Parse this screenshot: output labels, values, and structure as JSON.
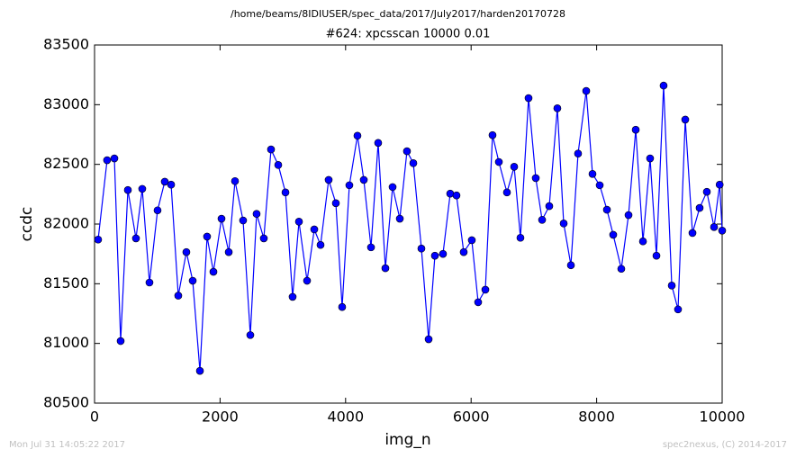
{
  "chart_data": {
    "type": "line",
    "title": "/home/beams/8IDIUSER/spec_data/2017/July2017/harden20170728",
    "subtitle": "#624: xpcsscan 10000 0.01",
    "xlabel": "img_n",
    "ylabel": "ccdc",
    "annotations": [
      "Mon Jul 31 14:05:22 2017",
      "spec2nexus, (C) 2014-2017"
    ],
    "color": "#0000ff",
    "marker": "circle",
    "grid": false,
    "xlim": [
      0,
      10000
    ],
    "xticks": [
      0,
      2000,
      4000,
      6000,
      8000,
      10000
    ],
    "ylim": [
      80500,
      83500
    ],
    "yticks": [
      80500,
      81000,
      81500,
      82000,
      82500,
      83000,
      83500
    ],
    "x": [
      57,
      200,
      316,
      416,
      531,
      660,
      760,
      875,
      1004,
      1119,
      1220,
      1334,
      1463,
      1564,
      1679,
      1793,
      1894,
      2023,
      2138,
      2238,
      2367,
      2482,
      2582,
      2697,
      2812,
      2927,
      3042,
      3156,
      3257,
      3386,
      3501,
      3601,
      3730,
      3845,
      3945,
      4060,
      4189,
      4290,
      4405,
      4519,
      4634,
      4749,
      4864,
      4978,
      5079,
      5208,
      5323,
      5423,
      5552,
      5667,
      5767,
      5882,
      6011,
      6112,
      6227,
      6341,
      6442,
      6571,
      6686,
      6786,
      6915,
      7030,
      7131,
      7245,
      7374,
      7475,
      7590,
      7704,
      7834,
      7934,
      8049,
      8164,
      8264,
      8393,
      8508,
      8623,
      8738,
      8852,
      8953,
      9067,
      9197,
      9297,
      9412,
      9527,
      9641,
      9756,
      9871,
      9960,
      10000
    ],
    "values": [
      81870,
      82535,
      82550,
      81020,
      82285,
      81880,
      82295,
      81510,
      82115,
      82355,
      82330,
      81400,
      81765,
      81525,
      80770,
      81895,
      81600,
      82045,
      81765,
      82360,
      82030,
      81070,
      82085,
      81880,
      82625,
      82495,
      82265,
      81390,
      82020,
      81525,
      81955,
      81825,
      82370,
      82175,
      81305,
      82325,
      82740,
      82370,
      81805,
      82680,
      81630,
      82310,
      82045,
      82610,
      82510,
      81795,
      81035,
      81735,
      81750,
      82255,
      82240,
      81765,
      81865,
      81345,
      81450,
      82745,
      82520,
      82265,
      82480,
      81885,
      83055,
      82385,
      82035,
      82150,
      82970,
      82005,
      81655,
      82590,
      83115,
      82420,
      82325,
      82120,
      81910,
      81625,
      82075,
      82790,
      81855,
      82550,
      81735,
      83160,
      81485,
      81285,
      82875,
      81925,
      82135,
      82270,
      81975,
      82330,
      81945
    ]
  }
}
